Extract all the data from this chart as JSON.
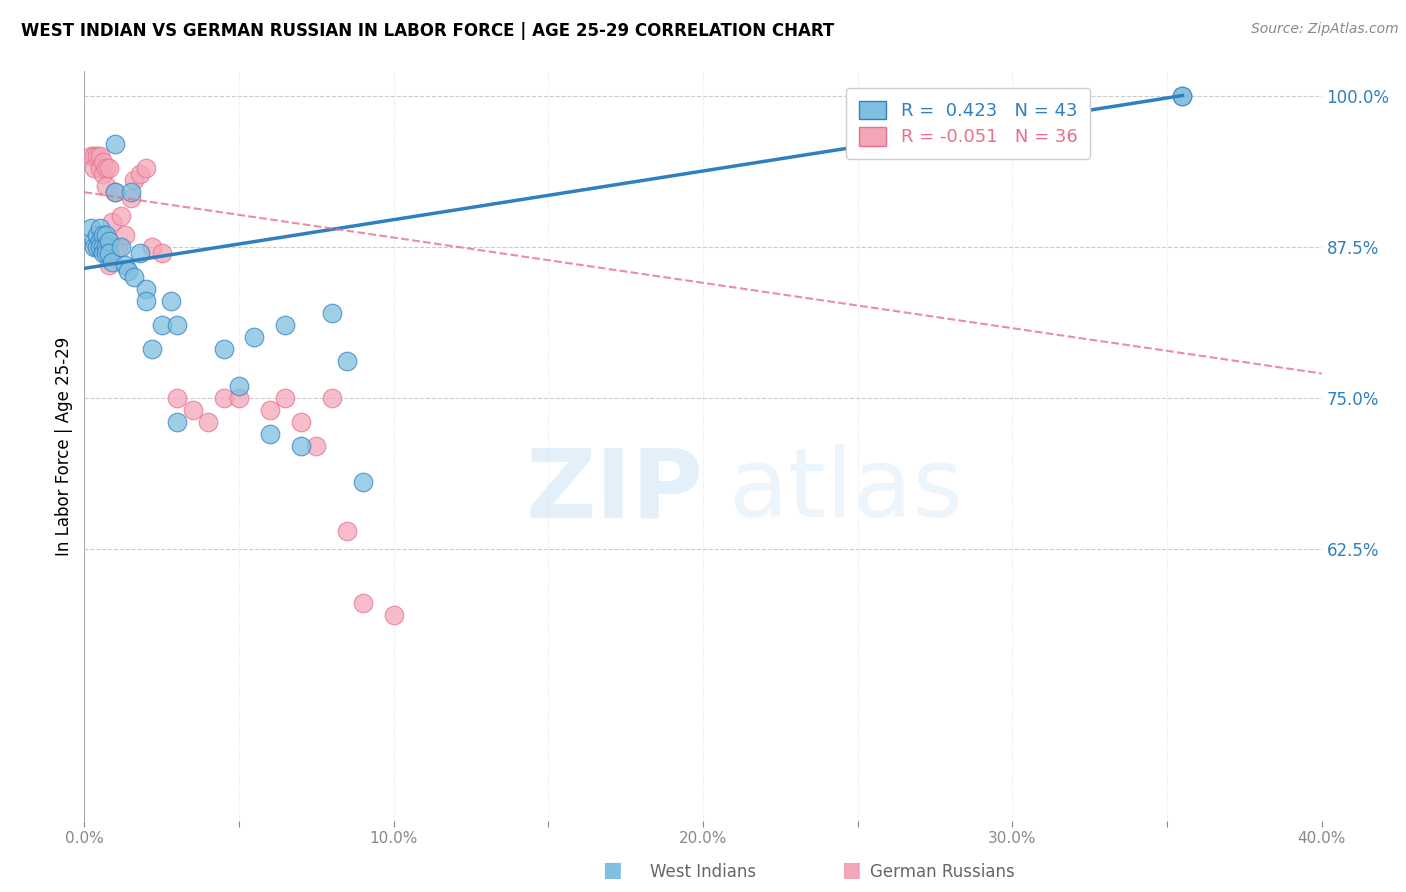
{
  "title": "WEST INDIAN VS GERMAN RUSSIAN IN LABOR FORCE | AGE 25-29 CORRELATION CHART",
  "source": "Source: ZipAtlas.com",
  "ylabel": "In Labor Force | Age 25-29",
  "xlim": [
    0.0,
    0.4
  ],
  "ylim": [
    0.4,
    1.02
  ],
  "xticks": [
    0.0,
    0.05,
    0.1,
    0.15,
    0.2,
    0.25,
    0.3,
    0.35,
    0.4
  ],
  "xticklabels": [
    "0.0%",
    "",
    "10.0%",
    "",
    "20.0%",
    "",
    "30.0%",
    "",
    "40.0%"
  ],
  "yticks": [
    0.625,
    0.75,
    0.875,
    1.0
  ],
  "yticklabels": [
    "62.5%",
    "75.0%",
    "87.5%",
    "100.0%"
  ],
  "legend_blue_label": "R =  0.423   N = 43",
  "legend_pink_label": "R = -0.051   N = 36",
  "footer_blue": "West Indians",
  "footer_pink": "German Russians",
  "blue_color": "#7fbfdf",
  "pink_color": "#f4a6b8",
  "blue_line_color": "#3080c0",
  "pink_line_color": "#e8708a",
  "west_indians_x": [
    0.002,
    0.003,
    0.003,
    0.004,
    0.004,
    0.005,
    0.005,
    0.005,
    0.006,
    0.006,
    0.006,
    0.007,
    0.007,
    0.007,
    0.008,
    0.008,
    0.009,
    0.01,
    0.01,
    0.012,
    0.013,
    0.014,
    0.015,
    0.016,
    0.018,
    0.02,
    0.02,
    0.022,
    0.025,
    0.028,
    0.03,
    0.03,
    0.045,
    0.05,
    0.055,
    0.06,
    0.065,
    0.07,
    0.08,
    0.085,
    0.09,
    0.355,
    0.355
  ],
  "west_indians_y": [
    0.89,
    0.88,
    0.875,
    0.885,
    0.875,
    0.89,
    0.88,
    0.875,
    0.885,
    0.875,
    0.87,
    0.885,
    0.875,
    0.87,
    0.88,
    0.87,
    0.862,
    0.96,
    0.92,
    0.875,
    0.86,
    0.855,
    0.92,
    0.85,
    0.87,
    0.84,
    0.83,
    0.79,
    0.81,
    0.83,
    0.81,
    0.73,
    0.79,
    0.76,
    0.8,
    0.72,
    0.81,
    0.71,
    0.82,
    0.78,
    0.68,
    1.0,
    1.0
  ],
  "german_russians_x": [
    0.002,
    0.003,
    0.003,
    0.004,
    0.005,
    0.005,
    0.006,
    0.006,
    0.007,
    0.007,
    0.008,
    0.008,
    0.009,
    0.01,
    0.011,
    0.012,
    0.013,
    0.015,
    0.016,
    0.018,
    0.02,
    0.022,
    0.025,
    0.03,
    0.035,
    0.04,
    0.045,
    0.05,
    0.06,
    0.065,
    0.07,
    0.075,
    0.08,
    0.085,
    0.09,
    0.1
  ],
  "german_russians_y": [
    0.95,
    0.95,
    0.94,
    0.95,
    0.95,
    0.94,
    0.945,
    0.935,
    0.94,
    0.925,
    0.94,
    0.86,
    0.895,
    0.92,
    0.875,
    0.9,
    0.885,
    0.915,
    0.93,
    0.935,
    0.94,
    0.875,
    0.87,
    0.75,
    0.74,
    0.73,
    0.75,
    0.75,
    0.74,
    0.75,
    0.73,
    0.71,
    0.75,
    0.64,
    0.58,
    0.57
  ],
  "blue_trend": [
    0.0,
    0.857,
    0.355,
    1.0
  ],
  "pink_trend": [
    0.0,
    0.92,
    0.4,
    0.77
  ]
}
